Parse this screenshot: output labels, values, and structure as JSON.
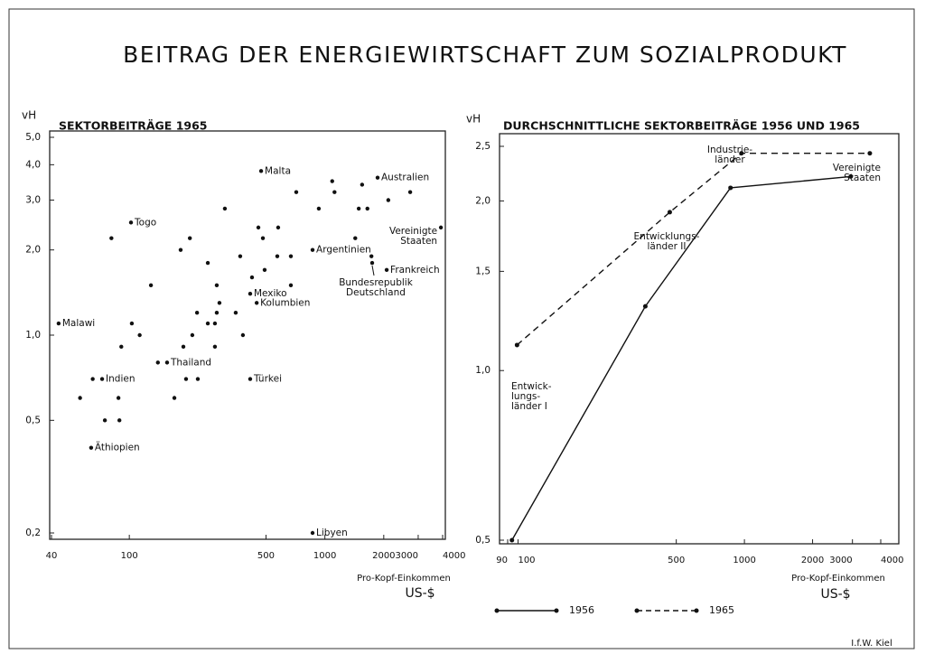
{
  "title": "BEITRAG DER ENERGIEWIRTSCHAFT ZUM SOZIALPRODUKT",
  "source": "I.f.W. Kiel",
  "chart_data": [
    {
      "type": "scatter",
      "title": "SEKTORBEITRÄGE 1965",
      "ylabel": "vH",
      "xlabel": "Pro-Kopf-Einkommen",
      "xunit": "US-$",
      "xlog": true,
      "ylog": true,
      "color": "#111",
      "xlim": [
        40,
        4000
      ],
      "xticks": [
        40,
        100,
        500,
        1000,
        2000,
        3000,
        4000
      ],
      "ylim": [
        0.2,
        5
      ],
      "yticks": [
        {
          "value": 0.2,
          "label": "0,2"
        },
        {
          "value": 0.5,
          "label": "0,5"
        },
        {
          "value": 1,
          "label": "1,0"
        },
        {
          "value": 2,
          "label": "2,0"
        },
        {
          "value": 3,
          "label": "3,0"
        },
        {
          "value": 4,
          "label": "4,0"
        },
        {
          "value": 5,
          "label": "5,0"
        }
      ],
      "x": [
        472,
        1860,
        102,
        3920,
        865,
        2070,
        1745,
        415,
        448,
        43.5,
        156,
        72.6,
        415,
        63.8,
        865,
        81,
        129,
        103,
        113,
        91,
        140,
        204,
        183,
        252,
        308,
        369,
        280,
        222,
        280,
        252,
        274,
        289,
        350,
        210,
        189,
        274,
        381,
        195,
        224,
        170,
        88,
        56,
        65,
        75,
        89,
        457,
        482,
        492,
        571,
        670,
        670,
        424,
        577,
        714,
        931,
        1090,
        1120,
        1490,
        1650,
        1550,
        2110,
        2730,
        1430,
        1730
      ],
      "values": [
        3.8,
        3.6,
        2.5,
        2.4,
        2.0,
        1.7,
        1.8,
        1.4,
        1.3,
        1.1,
        0.8,
        0.7,
        0.7,
        0.4,
        0.2,
        2.2,
        1.5,
        1.1,
        1.0,
        0.91,
        0.8,
        2.2,
        2.0,
        1.8,
        2.8,
        1.9,
        1.5,
        1.2,
        1.2,
        1.1,
        1.1,
        1.3,
        1.2,
        1.0,
        0.91,
        0.91,
        1.0,
        0.7,
        0.7,
        0.6,
        0.6,
        0.6,
        0.7,
        0.5,
        0.5,
        2.4,
        2.2,
        1.7,
        1.9,
        1.9,
        1.5,
        1.6,
        2.4,
        3.2,
        2.8,
        3.5,
        3.2,
        2.8,
        2.8,
        3.4,
        3.0,
        3.2,
        2.2,
        1.9
      ],
      "labels": [
        "Malta",
        "Australien",
        "Togo",
        "Vereinigte\nStaaten",
        "Argentinien",
        "Frankreich",
        "Bundesrepublik\nDeutschland",
        "Mexiko",
        "Kolumbien",
        "Malawi",
        "Thailand",
        "Indien",
        "Türkei",
        "Äthiopien",
        "Libyen",
        null,
        null,
        null,
        null,
        null,
        null,
        null,
        null,
        null,
        null,
        null,
        null,
        null,
        null,
        null,
        null,
        null,
        null,
        null,
        null,
        null,
        null,
        null,
        null,
        null,
        null,
        null,
        null,
        null,
        null,
        null,
        null,
        null,
        null,
        null,
        null,
        null,
        null,
        null,
        null,
        null,
        null,
        null,
        null,
        null,
        null,
        null,
        null,
        null
      ]
    },
    {
      "type": "line",
      "title": "DURCHSCHNITTLICHE SEKTORBEITRÄGE 1956 UND 1965",
      "ylabel": "vH",
      "xlabel": "Pro-Kopf-Einkommen",
      "xunit": "US-$",
      "xlog": true,
      "ylog": true,
      "xlim": [
        90,
        4000
      ],
      "xticks": [
        90,
        100,
        500,
        1000,
        2000,
        3000,
        4000
      ],
      "ylim": [
        0.5,
        2.5
      ],
      "yticks": [
        {
          "value": 0.5,
          "label": "0,5"
        },
        {
          "value": 1,
          "label": "1,0"
        },
        {
          "value": 1.5,
          "label": "1,5"
        },
        {
          "value": 2,
          "label": "2,0"
        },
        {
          "value": 2.5,
          "label": "2,5"
        }
      ],
      "series": [
        {
          "name": "1956",
          "color": "#111",
          "dash": "solid",
          "x": [
            94,
            365,
            868,
            2950
          ],
          "values": [
            0.5,
            1.3,
            2.11,
            2.21
          ]
        },
        {
          "name": "1965",
          "color": "#111",
          "dash": "dashed",
          "x": [
            99,
            468,
            970,
            3580
          ],
          "values": [
            1.11,
            1.91,
            2.43,
            2.43
          ]
        }
      ],
      "annotations": [
        "Industrie-\nländer",
        "Vereinigte\nStaaten",
        "Entwicklungs-\nländer II",
        "Entwick-\nlungs-\nländer I"
      ]
    }
  ]
}
